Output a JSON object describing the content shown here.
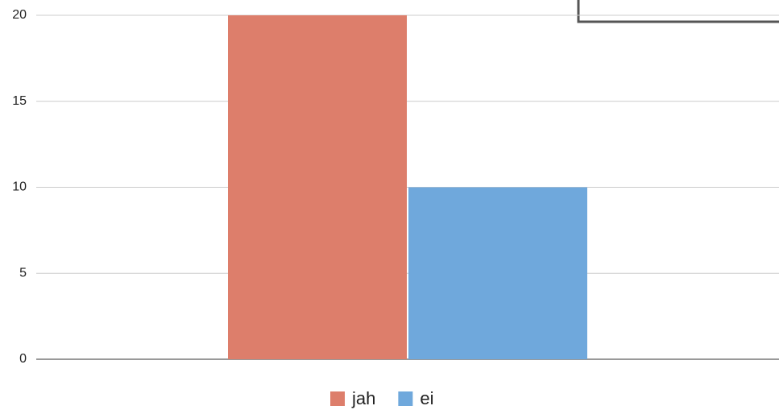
{
  "chart_data": {
    "type": "bar",
    "categories": [
      null
    ],
    "series": [
      {
        "name": "jah",
        "color": "#dd7e6b",
        "values": [
          20
        ]
      },
      {
        "name": "ei",
        "color": "#6fa8dc",
        "values": [
          10
        ]
      }
    ],
    "ylim": [
      0,
      20
    ],
    "yticks": [
      0,
      5,
      10,
      15,
      20
    ],
    "grid": true,
    "legend": "bottom"
  }
}
